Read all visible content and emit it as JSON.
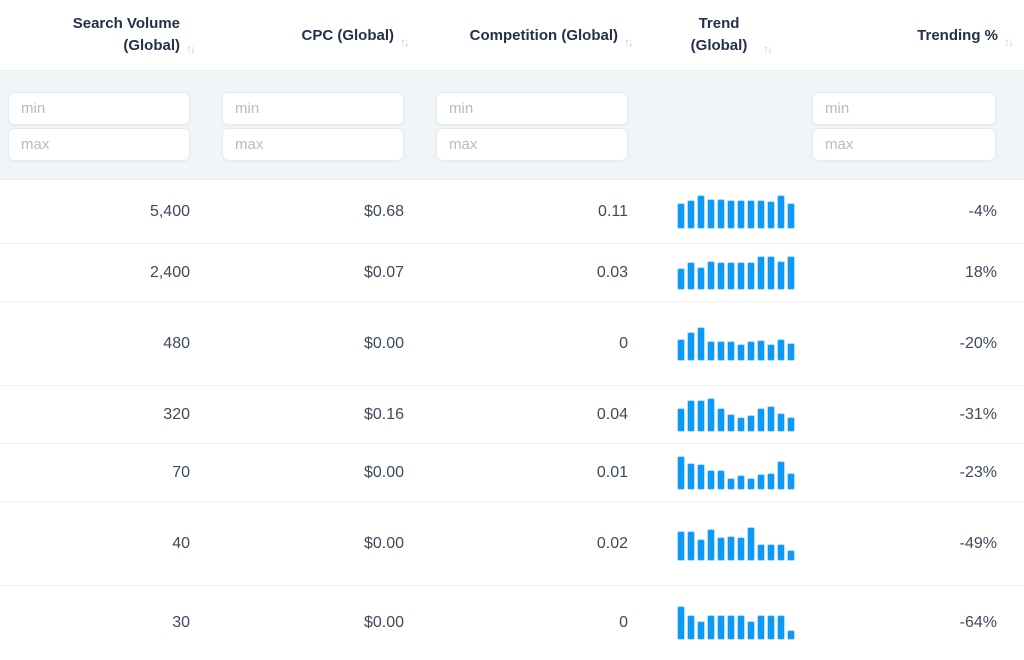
{
  "ui": {
    "sort_indicator": "↑↓"
  },
  "columns": [
    {
      "id": "search-volume",
      "label": "Search Volume (Global)",
      "sortable": true,
      "has_filter": true
    },
    {
      "id": "cpc",
      "label": "CPC (Global)",
      "sortable": true,
      "has_filter": true
    },
    {
      "id": "competition",
      "label": "Competition (Global)",
      "sortable": true,
      "has_filter": true
    },
    {
      "id": "trend",
      "label": "Trend (Global)",
      "sortable": true,
      "has_filter": false
    },
    {
      "id": "trending-pct",
      "label": "Trending %",
      "sortable": true,
      "has_filter": true
    }
  ],
  "filter": {
    "min_placeholder": "min",
    "max_placeholder": "max"
  },
  "colors": {
    "bar_fill": "#0d9af6",
    "bar_halo": "#b4dcfb",
    "header_text": "#25314a",
    "value_text": "#3d4a5c",
    "filter_bg": "#f0f5f8"
  },
  "rows": [
    {
      "search_volume": "5,400",
      "cpc": "$0.68",
      "competition": "0.11",
      "trending_pct": "-4%",
      "trend_bars": [
        76,
        84,
        100,
        88,
        87,
        85,
        85,
        85,
        84,
        81,
        98,
        76
      ]
    },
    {
      "search_volume": "2,400",
      "cpc": "$0.07",
      "competition": "0.03",
      "trending_pct": "18%",
      "trend_bars": [
        62,
        80,
        66,
        85,
        82,
        82,
        82,
        80,
        100,
        100,
        84,
        100
      ]
    },
    {
      "search_volume": "480",
      "cpc": "$0.00",
      "competition": "0",
      "trending_pct": "-20%",
      "trend_bars": [
        64,
        85,
        100,
        58,
        58,
        58,
        48,
        58,
        60,
        48,
        62,
        52
      ]
    },
    {
      "search_volume": "320",
      "cpc": "$0.16",
      "competition": "0.04",
      "trending_pct": "-31%",
      "trend_bars": [
        70,
        94,
        94,
        100,
        68,
        52,
        44,
        50,
        68,
        74,
        54,
        42
      ]
    },
    {
      "search_volume": "70",
      "cpc": "$0.00",
      "competition": "0.01",
      "trending_pct": "-23%",
      "trend_bars": [
        100,
        78,
        74,
        58,
        56,
        34,
        42,
        34,
        46,
        50,
        84,
        48
      ]
    },
    {
      "search_volume": "40",
      "cpc": "$0.00",
      "competition": "0.02",
      "trending_pct": "-49%",
      "trend_bars": [
        88,
        88,
        62,
        94,
        70,
        72,
        70,
        100,
        50,
        48,
        48,
        32
      ]
    },
    {
      "search_volume": "30",
      "cpc": "$0.00",
      "competition": "0",
      "trending_pct": "-64%",
      "trend_bars": [
        100,
        75,
        55,
        75,
        75,
        75,
        75,
        55,
        75,
        75,
        75,
        30
      ]
    }
  ]
}
